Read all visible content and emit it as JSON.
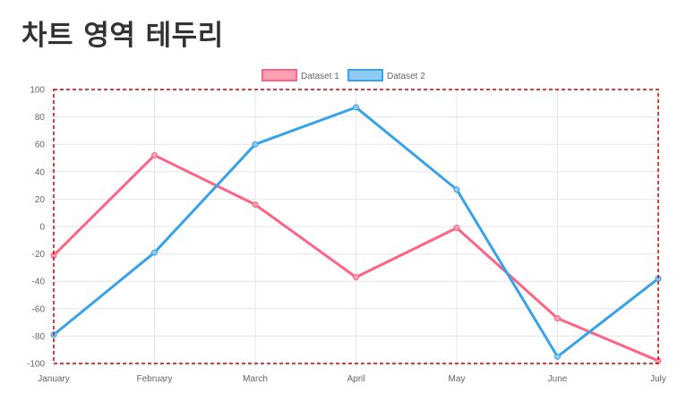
{
  "page": {
    "title": "차트 영역 테두리"
  },
  "colors": {
    "dataset1_line": "#ff6384",
    "dataset1_fill": "#ff9fb4",
    "dataset2_line": "#36a2eb",
    "dataset2_fill": "#8fcbf3",
    "border": "#cc0000",
    "grid": "#e6e6e6",
    "tick": "#666666"
  },
  "chart_data": {
    "type": "line",
    "categories": [
      "January",
      "February",
      "March",
      "April",
      "May",
      "June",
      "July"
    ],
    "series": [
      {
        "name": "Dataset 1",
        "values": [
          -21,
          52,
          16,
          -37,
          -1,
          -67,
          -98
        ]
      },
      {
        "name": "Dataset 2",
        "values": [
          -79,
          -19,
          60,
          87,
          27,
          -95,
          -38
        ]
      }
    ],
    "ylim": [
      -100,
      100
    ],
    "yticks": [
      100,
      80,
      60,
      40,
      20,
      0,
      -20,
      -40,
      -60,
      -80,
      -100
    ],
    "ytick_labels": [
      "100",
      "80",
      "60",
      "40",
      "20",
      "0",
      "-20",
      "-40",
      "-60",
      "-80",
      "-100"
    ],
    "grid": true,
    "legend_position": "top",
    "chart_area_border": "dashed"
  }
}
